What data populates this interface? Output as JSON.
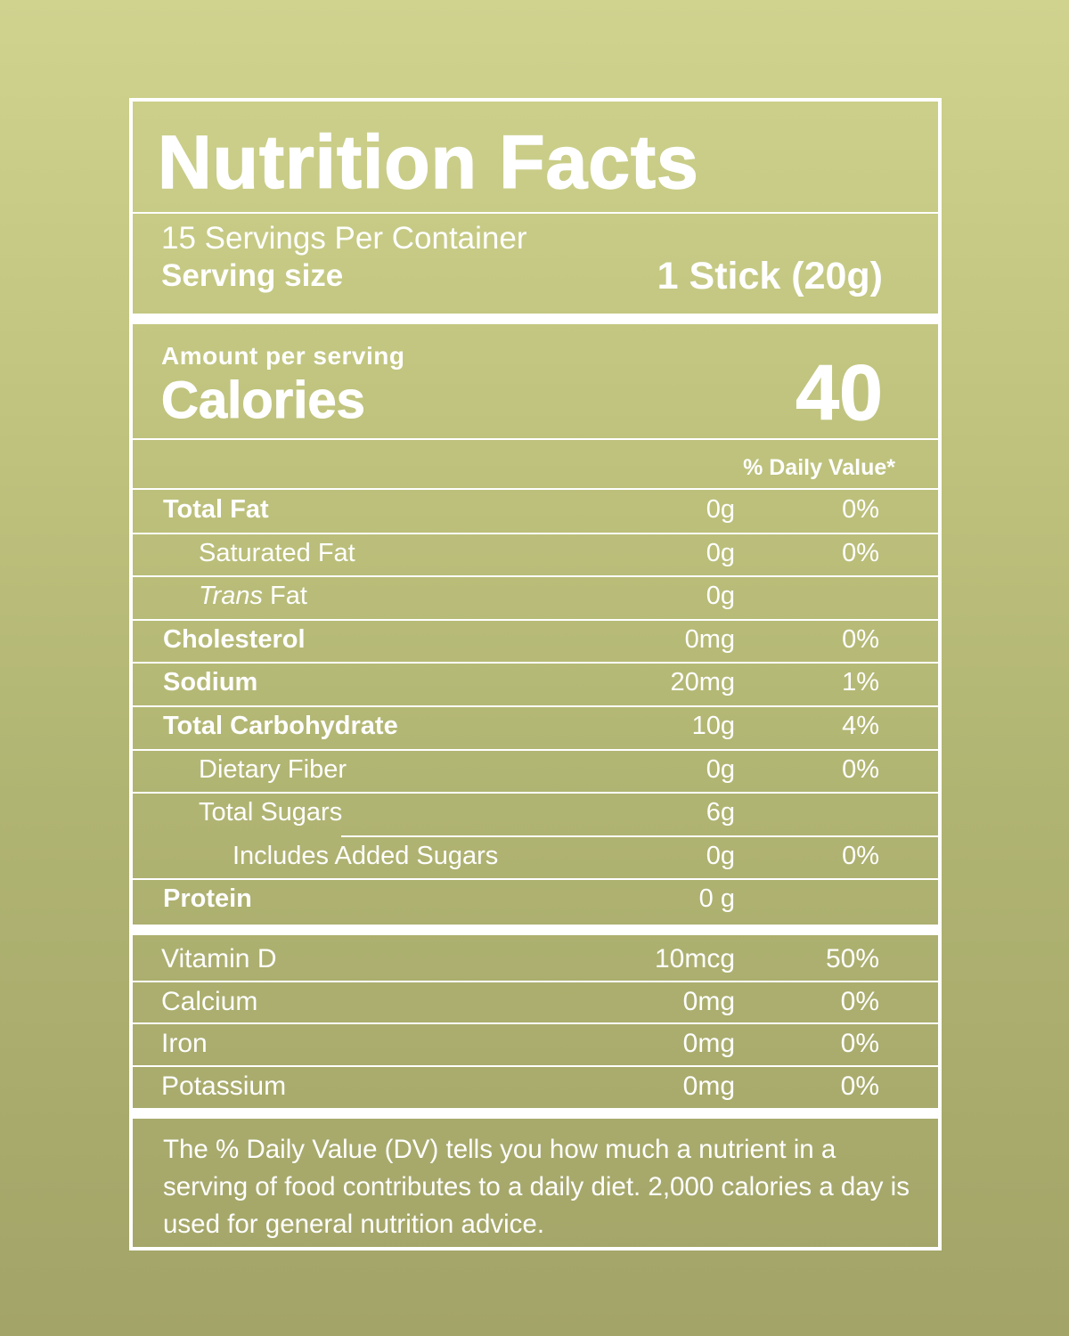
{
  "label": {
    "title": "Nutrition Facts",
    "servings_per_container": "15 Servings Per Container",
    "serving_size_label": "Serving size",
    "serving_size_value": "1 Stick (20g)",
    "amount_per_serving": "Amount per serving",
    "calories_label": "Calories",
    "calories_value": "40",
    "daily_value_header": "% Daily Value*",
    "nutrients": [
      {
        "name": "Total Fat",
        "amount": "0g",
        "dv": "0%",
        "bold": true,
        "indent": 0
      },
      {
        "name": "Saturated Fat",
        "amount": "0g",
        "dv": "0%",
        "bold": false,
        "indent": 1
      },
      {
        "name_italic": "Trans",
        "name_rest": " Fat",
        "amount": "0g",
        "dv": "",
        "bold": false,
        "indent": 1
      },
      {
        "name": "Cholesterol",
        "amount": "0mg",
        "dv": "0%",
        "bold": true,
        "indent": 0
      },
      {
        "name": "Sodium",
        "amount": "20mg",
        "dv": "1%",
        "bold": true,
        "indent": 0
      },
      {
        "name": "Total Carbohydrate",
        "amount": "10g",
        "dv": "4%",
        "bold": true,
        "indent": 0
      },
      {
        "name": "Dietary Fiber",
        "amount": "0g",
        "dv": "0%",
        "bold": false,
        "indent": 1
      },
      {
        "name": "Total Sugars",
        "amount": "6g",
        "dv": "",
        "bold": false,
        "indent": 1
      },
      {
        "name": "Includes Added Sugars",
        "amount": "0g",
        "dv": "0%",
        "bold": false,
        "indent": 2
      },
      {
        "name": "Protein",
        "amount": "0 g",
        "dv": "",
        "bold": true,
        "indent": 0
      }
    ],
    "vitamins": [
      {
        "name": "Vitamin D",
        "amount": "10mcg",
        "dv": "50%"
      },
      {
        "name": "Calcium",
        "amount": "0mg",
        "dv": "0%"
      },
      {
        "name": "Iron",
        "amount": "0mg",
        "dv": "0%"
      },
      {
        "name": "Potassium",
        "amount": "0mg",
        "dv": "0%"
      }
    ],
    "footnote": "The % Daily Value (DV) tells you how much a nutrient in a serving of food contributes to a daily diet. 2,000 calories a day is used for general nutrition advice."
  }
}
